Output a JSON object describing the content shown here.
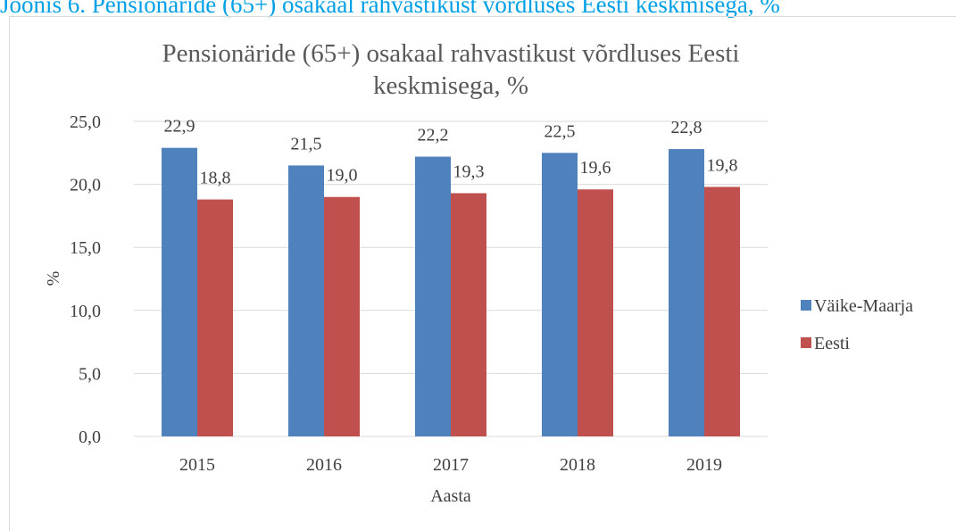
{
  "caption": "Joonis 6. Pensionäride (65+) osakaal rahvastikust võrdluses Eesti keskmisega, %",
  "chart_data": {
    "type": "bar",
    "title": "Pensionäride (65+) osakaal rahvastikust võrdluses Eesti keskmisega, %",
    "x_label": "Aasta",
    "y_label": "%",
    "categories": [
      "2015",
      "2016",
      "2017",
      "2018",
      "2019"
    ],
    "series": [
      {
        "name": "Väike-Maarja",
        "color": "#4f81bd",
        "values": [
          22.9,
          21.5,
          22.2,
          22.5,
          22.8
        ],
        "value_labels": [
          "22,9",
          "21,5",
          "22,2",
          "22,5",
          "22,8"
        ]
      },
      {
        "name": "Eesti",
        "color": "#c0504d",
        "values": [
          18.8,
          19.0,
          19.3,
          19.6,
          19.8
        ],
        "value_labels": [
          "18,8",
          "19,0",
          "19,3",
          "19,6",
          "19,8"
        ]
      }
    ],
    "ylim": [
      0,
      25
    ],
    "yticks": [
      {
        "value": 0,
        "label": "0,0"
      },
      {
        "value": 5,
        "label": "5,0"
      },
      {
        "value": 10,
        "label": "10,0"
      },
      {
        "value": 15,
        "label": "15,0"
      },
      {
        "value": 20,
        "label": "20,0"
      },
      {
        "value": 25,
        "label": "25,0"
      }
    ],
    "grid": true,
    "legend": "right"
  }
}
